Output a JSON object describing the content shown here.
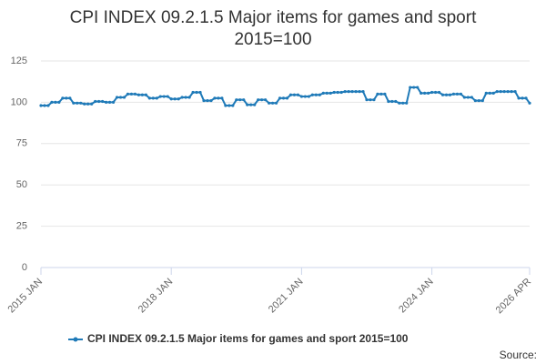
{
  "chart_data": {
    "type": "line",
    "title": "CPI INDEX 09.2.1.5 Major items for games and sport 2015=100",
    "source": "Source:",
    "categories": [
      "2015 JAN",
      null,
      null,
      null,
      null,
      null,
      null,
      null,
      null,
      null,
      null,
      null,
      null,
      null,
      null,
      null,
      null,
      null,
      null,
      null,
      null,
      null,
      null,
      null,
      null,
      null,
      null,
      null,
      null,
      null,
      null,
      null,
      null,
      null,
      null,
      null,
      "2018 JAN",
      null,
      null,
      null,
      null,
      null,
      null,
      null,
      null,
      null,
      null,
      null,
      null,
      null,
      null,
      null,
      null,
      null,
      null,
      null,
      null,
      null,
      null,
      null,
      null,
      null,
      null,
      null,
      null,
      null,
      null,
      null,
      null,
      null,
      null,
      null,
      "2021 JAN",
      null,
      null,
      null,
      null,
      null,
      null,
      null,
      null,
      null,
      null,
      null,
      null,
      null,
      null,
      null,
      null,
      null,
      null,
      null,
      null,
      null,
      null,
      null,
      null,
      null,
      null,
      null,
      null,
      null,
      null,
      null,
      null,
      null,
      null,
      null,
      "2024 JAN",
      null,
      null,
      null,
      null,
      null,
      null,
      null,
      null,
      null,
      null,
      null,
      null,
      null,
      null,
      null,
      null,
      null,
      null,
      null,
      null,
      null,
      null,
      null,
      null,
      null,
      null,
      "2026 APR"
    ],
    "series": [
      {
        "name": "CPI INDEX 09.2.1.5 Major items for games and sport 2015=100",
        "color": "#1f7ab8",
        "values": [
          98,
          98,
          98,
          100,
          100,
          100,
          102.5,
          102.5,
          102.5,
          99.5,
          99.5,
          99.5,
          99,
          99,
          99,
          100.5,
          100.5,
          100.5,
          100,
          100,
          100,
          103,
          103,
          103,
          105,
          105,
          105,
          104.5,
          104.5,
          104.5,
          102.5,
          102.5,
          102.5,
          103.5,
          103.5,
          103.5,
          102,
          102,
          102,
          103,
          103,
          103,
          106,
          106,
          106,
          101,
          101,
          101,
          102.5,
          102.5,
          102.5,
          98,
          98,
          98,
          101.5,
          101.5,
          101.5,
          98.5,
          98.5,
          98.5,
          101.5,
          101.5,
          101.5,
          99.5,
          99.5,
          99.5,
          102.5,
          102.5,
          102.5,
          104.5,
          104.5,
          104.5,
          103.5,
          103.5,
          103.5,
          104.5,
          104.5,
          104.5,
          105.5,
          105.5,
          105.5,
          106,
          106,
          106,
          106.5,
          106.5,
          106.5,
          106.5,
          106.5,
          106.5,
          101.5,
          101.5,
          101.5,
          105,
          105,
          105,
          100.5,
          100.5,
          100.5,
          99.5,
          99.5,
          99.5,
          109,
          109,
          109,
          105.5,
          105.5,
          105.5,
          106,
          106,
          106,
          104.5,
          104.5,
          104.5,
          105,
          105,
          105,
          103,
          103,
          103,
          101,
          101,
          101,
          105.5,
          105.5,
          105.5,
          106.5,
          106.5,
          106.5,
          106.5,
          106.5,
          106.5,
          102.5,
          102.5,
          102.5,
          99.5
        ]
      }
    ],
    "ylim": [
      0,
      125
    ],
    "yticks": [
      0,
      25,
      50,
      75,
      100,
      125
    ],
    "grid": true,
    "legend": "bottom"
  }
}
